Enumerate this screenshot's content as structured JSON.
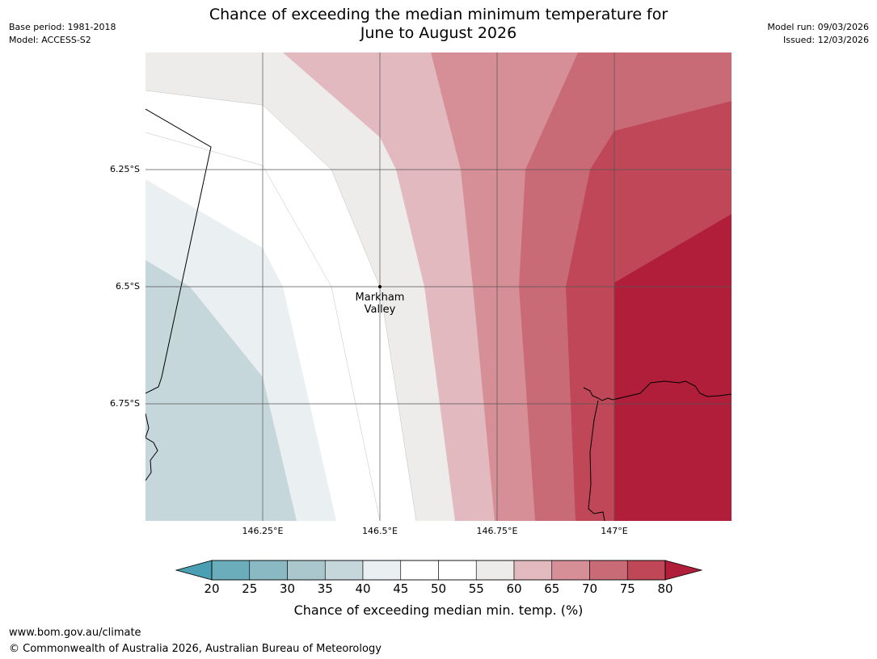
{
  "title": {
    "line1": "Chance of exceeding the median minimum temperature for",
    "line2": "June to August 2026"
  },
  "meta_left": {
    "base_period": "Base period: 1981-2018",
    "model": "Model: ACCESS-S2"
  },
  "meta_right": {
    "model_run": "Model run: 09/03/2026",
    "issued": "Issued: 12/03/2026"
  },
  "map": {
    "lat_labels": [
      "6.25°S",
      "6.5°S",
      "6.75°S"
    ],
    "lon_labels": [
      "146.25°E",
      "146.5°E",
      "146.75°E",
      "147°E"
    ],
    "place": {
      "name_line1": "Markham",
      "name_line2": "Valley",
      "lat": -6.5,
      "lon": 146.5
    }
  },
  "colorbar": {
    "ticks": [
      "20",
      "25",
      "30",
      "35",
      "40",
      "45",
      "50",
      "55",
      "60",
      "65",
      "70",
      "75",
      "80"
    ],
    "label": "Chance of exceeding median min. temp. (%)",
    "colors": {
      "below_20": "#4aa0b2",
      "20_25": "#6badbb",
      "25_30": "#8ab9c4",
      "30_35": "#abc7ce",
      "35_40": "#c6d7dc",
      "40_45": "#eaeff2",
      "45_55": "#ffffff",
      "55_60": "#eeeceb",
      "60_65": "#e2b9be",
      "65_70": "#d68f97",
      "70_75": "#c96b77",
      "75_80": "#c04757",
      "above_80": "#b01e3a"
    }
  },
  "footer": {
    "url": "www.bom.gov.au/climate",
    "copyright": "© Commonwealth of Australia 2026, Australian Bureau of Meteorology"
  }
}
